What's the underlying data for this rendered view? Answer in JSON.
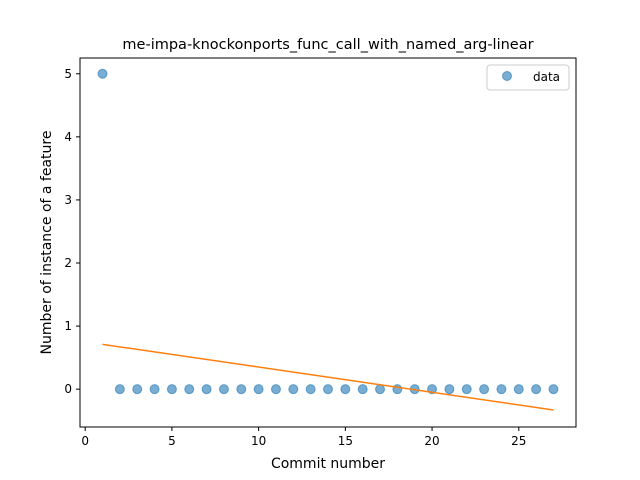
{
  "chart_data": {
    "type": "scatter",
    "title": "me-impa-knockonports_func_call_with_named_arg-linear",
    "xlabel": "Commit number",
    "ylabel": "Number of instance of a feature",
    "xlim": [
      -0.3,
      28.3
    ],
    "ylim": [
      -0.6,
      5.25
    ],
    "xticks": [
      0,
      5,
      10,
      15,
      20,
      25
    ],
    "yticks": [
      0,
      1,
      2,
      3,
      4,
      5
    ],
    "grid": false,
    "legend_position": "top-right",
    "series": [
      {
        "name": "data",
        "kind": "scatter",
        "color": "#1f77b4",
        "x": [
          1,
          2,
          3,
          4,
          5,
          6,
          7,
          8,
          9,
          10,
          11,
          12,
          13,
          14,
          15,
          16,
          17,
          18,
          19,
          20,
          21,
          22,
          23,
          24,
          25,
          26,
          27
        ],
        "y": [
          5,
          0,
          0,
          0,
          0,
          0,
          0,
          0,
          0,
          0,
          0,
          0,
          0,
          0,
          0,
          0,
          0,
          0,
          0,
          0,
          0,
          0,
          0,
          0,
          0,
          0,
          0
        ]
      },
      {
        "kind": "line",
        "color": "#ff7f0e",
        "x": [
          1,
          27
        ],
        "y": [
          0.71,
          -0.33
        ]
      }
    ]
  }
}
